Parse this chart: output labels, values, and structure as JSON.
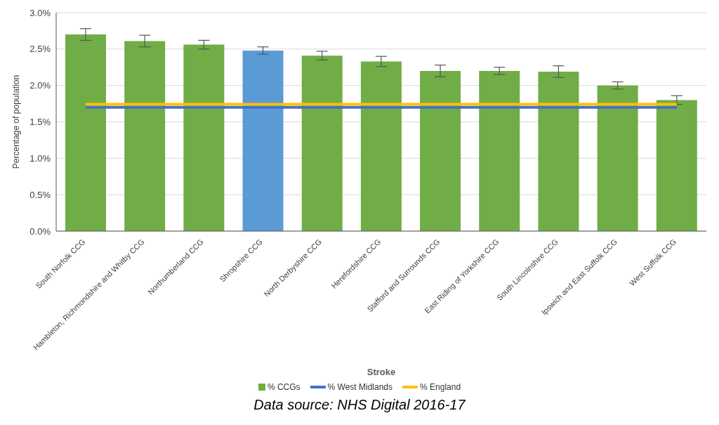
{
  "chart_data": {
    "type": "bar",
    "xlabel": "Stroke",
    "ylabel": "Percentage of population",
    "categories": [
      "South Norfolk CCG",
      "Hambleton, Richmondshire and Whitby CCG",
      "Northumberland CCG",
      "Shropshire CCG",
      "North Derbyshire CCG",
      "Herefordshire CCG",
      "Stafford and Surrounds CCG",
      "East Riding of Yorkshire CCG",
      "South Lincolnshire CCG",
      "Ipswich and East Suffolk CCG",
      "West Suffolk CCG"
    ],
    "series": [
      {
        "name": "% CCGs",
        "color": "#70ad47",
        "colors": [
          "#70ad47",
          "#70ad47",
          "#70ad47",
          "#5b9bd5",
          "#70ad47",
          "#70ad47",
          "#70ad47",
          "#70ad47",
          "#70ad47",
          "#70ad47",
          "#70ad47"
        ],
        "values": [
          2.7,
          2.61,
          2.56,
          2.48,
          2.41,
          2.33,
          2.2,
          2.2,
          2.19,
          2.0,
          1.8
        ],
        "errors": [
          0.08,
          0.08,
          0.06,
          0.05,
          0.06,
          0.07,
          0.08,
          0.05,
          0.08,
          0.05,
          0.06
        ]
      },
      {
        "name": "% West Midlands",
        "type": "line",
        "color": "#4472c4",
        "values": [
          1.7,
          1.7,
          1.7,
          1.7,
          1.7,
          1.7,
          1.7,
          1.7,
          1.7,
          1.7,
          1.7
        ]
      },
      {
        "name": "% England",
        "type": "line",
        "color": "#ffc000",
        "values": [
          1.74,
          1.74,
          1.74,
          1.74,
          1.74,
          1.74,
          1.74,
          1.74,
          1.74,
          1.74,
          1.74
        ]
      }
    ],
    "ylim": [
      0,
      3
    ],
    "yticks": [
      {
        "value": 0,
        "label": "0.0%"
      },
      {
        "value": 0.5,
        "label": "0.5%"
      },
      {
        "value": 1,
        "label": "1.0%"
      },
      {
        "value": 1.5,
        "label": "1.5%"
      },
      {
        "value": 2,
        "label": "2.0%"
      },
      {
        "value": 2.5,
        "label": "2.5%"
      },
      {
        "value": 3,
        "label": "3.0%"
      }
    ],
    "grid": "y",
    "legend": "bottom",
    "marker": "none",
    "annotations": [
      "Data source: NHS Digital 2016-17"
    ]
  }
}
